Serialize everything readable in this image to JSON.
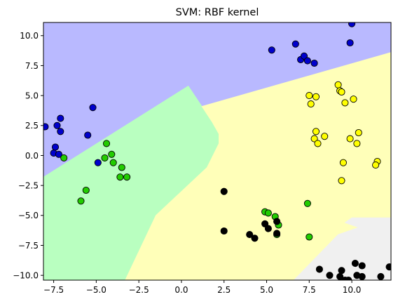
{
  "chart_data": {
    "type": "scatter",
    "title": "SVM: RBF kernel",
    "xlabel": "",
    "ylabel": "",
    "xlim": [
      -8.1,
      12.3
    ],
    "ylim": [
      -10.4,
      11.1
    ],
    "x_ticks": [
      -7.5,
      -5.0,
      -2.5,
      0.0,
      2.5,
      5.0,
      7.5,
      10.0
    ],
    "x_tick_labels": [
      "−7.5",
      "−5.0",
      "−2.5",
      "0.0",
      "2.5",
      "5.0",
      "7.5",
      "10.0"
    ],
    "y_ticks": [
      -10.0,
      -7.5,
      -5.0,
      -2.5,
      0.0,
      2.5,
      5.0,
      7.5,
      10.0
    ],
    "y_tick_labels": [
      "−10.0",
      "−7.5",
      "−5.0",
      "−2.5",
      "0.0",
      "2.5",
      "5.0",
      "7.5",
      "10.0"
    ],
    "grid": false,
    "legend": "none",
    "regions": [
      {
        "class": "blue",
        "color": "#b9b9ff",
        "polygon": [
          [
            -8.1,
            11.1
          ],
          [
            12.3,
            11.1
          ],
          [
            12.3,
            8.6
          ],
          [
            1.2,
            4.1
          ],
          [
            0.4,
            5.8
          ],
          [
            -8.1,
            -1.8
          ]
        ]
      },
      {
        "class": "green",
        "color": "#b9ffc0",
        "polygon": [
          [
            -8.1,
            -1.8
          ],
          [
            0.4,
            5.8
          ],
          [
            1.2,
            4.1
          ],
          [
            1.8,
            2.8
          ],
          [
            2.2,
            1.8
          ],
          [
            2.2,
            1.0
          ],
          [
            1.5,
            -1.0
          ],
          [
            -1.5,
            -5.0
          ],
          [
            -3.3,
            -10.4
          ],
          [
            -8.1,
            -10.4
          ]
        ]
      },
      {
        "class": "yellow",
        "color": "#ffffb9",
        "polygon": [
          [
            1.2,
            4.1
          ],
          [
            12.3,
            8.6
          ],
          [
            12.3,
            -5.2
          ],
          [
            10.0,
            -5.2
          ],
          [
            9.6,
            -5.6
          ],
          [
            10.4,
            -6.0
          ],
          [
            9.2,
            -6.6
          ],
          [
            6.6,
            -10.4
          ],
          [
            -3.3,
            -10.4
          ],
          [
            -1.5,
            -5.0
          ],
          [
            1.5,
            -1.0
          ],
          [
            2.2,
            1.0
          ],
          [
            2.2,
            1.8
          ],
          [
            1.8,
            2.8
          ]
        ]
      },
      {
        "class": "gray",
        "color": "#f0f0f0",
        "polygon": [
          [
            9.2,
            -6.6
          ],
          [
            10.4,
            -6.0
          ],
          [
            9.6,
            -5.6
          ],
          [
            10.0,
            -5.2
          ],
          [
            12.3,
            -5.2
          ],
          [
            12.3,
            -10.4
          ],
          [
            6.6,
            -10.4
          ]
        ]
      }
    ],
    "series": [
      {
        "color": "#0000cc",
        "points": [
          [
            -8.0,
            2.4
          ],
          [
            -7.3,
            2.5
          ],
          [
            -7.1,
            3.1
          ],
          [
            -7.1,
            2.0
          ],
          [
            -7.5,
            0.2
          ],
          [
            -7.2,
            0.1
          ],
          [
            -7.4,
            0.7
          ],
          [
            -5.5,
            1.7
          ],
          [
            -5.2,
            4.0
          ],
          [
            -4.9,
            -0.6
          ],
          [
            5.3,
            8.8
          ],
          [
            6.7,
            9.3
          ],
          [
            7.0,
            8.0
          ],
          [
            7.2,
            8.3
          ],
          [
            7.4,
            7.9
          ],
          [
            7.8,
            7.7
          ],
          [
            9.9,
            9.4
          ],
          [
            10.0,
            11.0
          ]
        ]
      },
      {
        "color": "#22cc00",
        "points": [
          [
            -6.9,
            -0.2
          ],
          [
            -4.4,
            1.0
          ],
          [
            -4.5,
            -0.2
          ],
          [
            -4.1,
            0.1
          ],
          [
            -4.0,
            -0.6
          ],
          [
            -3.5,
            -1.0
          ],
          [
            -3.6,
            -1.8
          ],
          [
            -3.2,
            -1.8
          ],
          [
            -5.6,
            -2.9
          ],
          [
            -5.9,
            -3.8
          ],
          [
            4.9,
            -4.7
          ],
          [
            5.1,
            -4.8
          ],
          [
            5.5,
            -5.1
          ],
          [
            5.7,
            -5.8
          ],
          [
            5.6,
            -6.6
          ],
          [
            7.4,
            -4.0
          ],
          [
            7.5,
            -6.8
          ]
        ]
      },
      {
        "color": "#000000",
        "points": [
          [
            2.5,
            -3.0
          ],
          [
            2.5,
            -6.3
          ],
          [
            4.0,
            -6.6
          ],
          [
            4.3,
            -6.9
          ],
          [
            4.9,
            -5.7
          ],
          [
            5.1,
            -6.1
          ],
          [
            5.6,
            -5.5
          ],
          [
            5.6,
            -6.5
          ],
          [
            8.1,
            -9.5
          ],
          [
            8.7,
            -10.0
          ],
          [
            9.3,
            -10.1
          ],
          [
            9.4,
            -9.6
          ],
          [
            9.6,
            -10.4
          ],
          [
            9.8,
            -10.4
          ],
          [
            10.2,
            -9.0
          ],
          [
            10.3,
            -10.0
          ],
          [
            10.6,
            -9.2
          ],
          [
            10.6,
            -10.1
          ],
          [
            11.7,
            -10.1
          ],
          [
            12.2,
            -9.3
          ]
        ]
      },
      {
        "color": "#ffff00",
        "points": [
          [
            7.5,
            5.0
          ],
          [
            7.6,
            4.3
          ],
          [
            7.9,
            4.9
          ],
          [
            9.2,
            5.9
          ],
          [
            9.3,
            5.4
          ],
          [
            9.4,
            5.3
          ],
          [
            9.6,
            4.4
          ],
          [
            10.1,
            4.7
          ],
          [
            7.9,
            2.0
          ],
          [
            8.4,
            1.6
          ],
          [
            7.8,
            1.4
          ],
          [
            8.0,
            1.0
          ],
          [
            9.9,
            1.4
          ],
          [
            10.3,
            1.0
          ],
          [
            10.4,
            1.9
          ],
          [
            11.5,
            -0.5
          ],
          [
            11.4,
            -0.8
          ],
          [
            9.5,
            -0.6
          ],
          [
            9.4,
            -2.1
          ]
        ]
      }
    ]
  }
}
